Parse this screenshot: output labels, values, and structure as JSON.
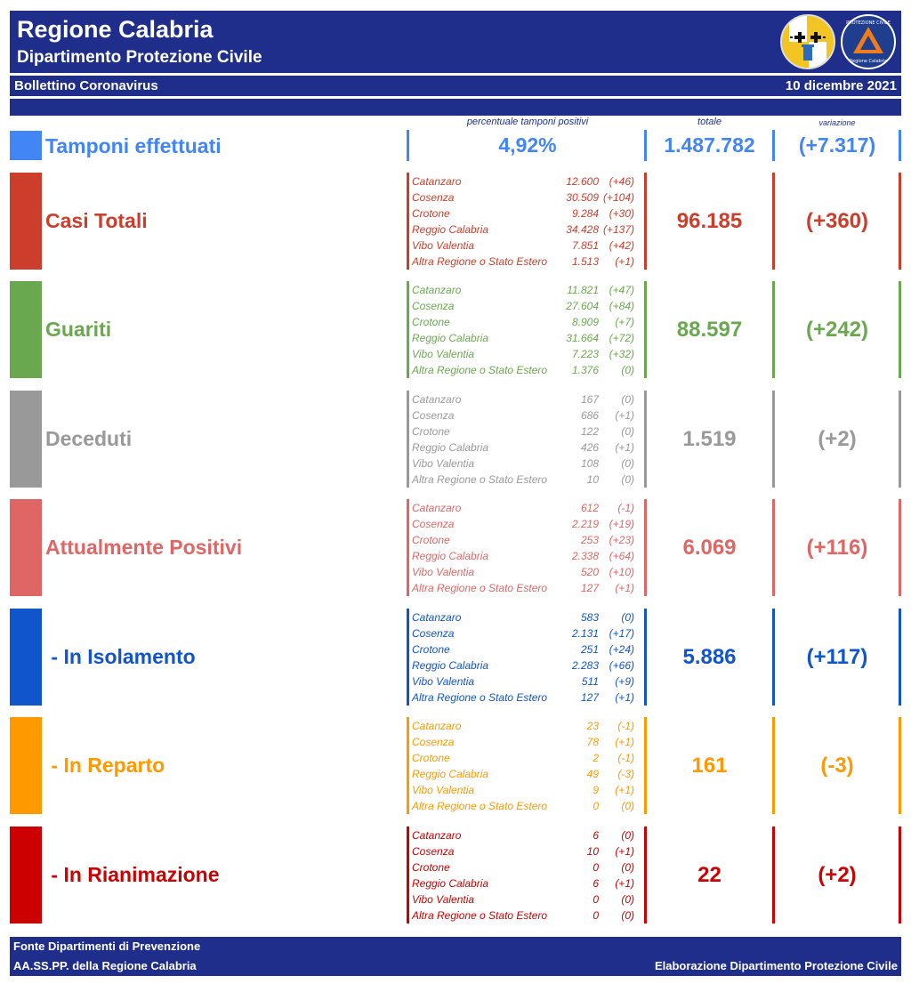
{
  "header": {
    "title": "Regione Calabria",
    "subtitle": "Dipartimento Protezione Civile",
    "bulletin": "Bollettino Coronavirus",
    "date": "10 dicembre 2021"
  },
  "columns": {
    "percent": "percentuale tamponi positivi",
    "total": "totale",
    "change": "variazione"
  },
  "tamponi": {
    "label": "Tamponi effettuati",
    "percent": "4,92%",
    "total": "1.487.782",
    "change": "(+7.317)",
    "color": "#4285f4"
  },
  "logos": {
    "left": {
      "name": "regione-calabria-coat-of-arms",
      "colors": {
        "bg": "#f2c524",
        "cross": "#111111",
        "column": "#2a6bbf"
      }
    },
    "right": {
      "name": "protezione-civile-calabria-logo",
      "text": "PROTEZIONE CIVILE",
      "bottom_text": "Regione Calabria",
      "colors": {
        "bg": "#1f3e8e",
        "triangle": "#f07c1c"
      }
    }
  },
  "sections": [
    {
      "key": "casi",
      "label": "Casi Totali",
      "color": "#cc3e2b",
      "total": "96.185",
      "change": "(+360)",
      "rows": [
        {
          "province": "Catanzaro",
          "value": "12.600",
          "change": "(+46)"
        },
        {
          "province": "Cosenza",
          "value": "30.509",
          "change": "(+104)"
        },
        {
          "province": "Crotone",
          "value": "9.284",
          "change": "(+30)"
        },
        {
          "province": "Reggio Calabria",
          "value": "34.428",
          "change": "(+137)"
        },
        {
          "province": "Vibo Valentia",
          "value": "7.851",
          "change": "(+42)"
        },
        {
          "province": "Altra Regione o Stato Estero",
          "value": "1.513",
          "change": "(+1)"
        }
      ]
    },
    {
      "key": "guariti",
      "label": "Guariti",
      "color": "#6aa84f",
      "total": "88.597",
      "change": "(+242)",
      "rows": [
        {
          "province": "Catanzaro",
          "value": "11.821",
          "change": "(+47)"
        },
        {
          "province": "Cosenza",
          "value": "27.604",
          "change": "(+84)"
        },
        {
          "province": "Crotone",
          "value": "8.909",
          "change": "(+7)"
        },
        {
          "province": "Reggio Calabria",
          "value": "31.664",
          "change": "(+72)"
        },
        {
          "province": "Vibo Valentia",
          "value": "7.223",
          "change": "(+32)"
        },
        {
          "province": "Altra Regione o Stato Estero",
          "value": "1.376",
          "change": "(0)"
        }
      ]
    },
    {
      "key": "deceduti",
      "label": "Deceduti",
      "color": "#999999",
      "total": "1.519",
      "change": "(+2)",
      "rows": [
        {
          "province": "Catanzaro",
          "value": "167",
          "change": "(0)"
        },
        {
          "province": "Cosenza",
          "value": "686",
          "change": "(+1)"
        },
        {
          "province": "Crotone",
          "value": "122",
          "change": "(0)"
        },
        {
          "province": "Reggio Calabria",
          "value": "426",
          "change": "(+1)"
        },
        {
          "province": "Vibo Valentia",
          "value": "108",
          "change": "(0)"
        },
        {
          "province": "Altra Regione o Stato Estero",
          "value": "10",
          "change": "(0)"
        }
      ]
    },
    {
      "key": "positivi",
      "label": "Attualmente Positivi",
      "color": "#e06666",
      "total": "6.069",
      "change": "(+116)",
      "rows": [
        {
          "province": "Catanzaro",
          "value": "612",
          "change": "(-1)"
        },
        {
          "province": "Cosenza",
          "value": "2.219",
          "change": "(+19)"
        },
        {
          "province": "Crotone",
          "value": "253",
          "change": "(+23)"
        },
        {
          "province": "Reggio Calabria",
          "value": "2.338",
          "change": "(+64)"
        },
        {
          "province": "Vibo Valentia",
          "value": "520",
          "change": "(+10)"
        },
        {
          "province": "Altra Regione o Stato Estero",
          "value": "127",
          "change": "(+1)"
        }
      ]
    },
    {
      "key": "isolamento",
      "label": " - In Isolamento",
      "color": "#1155cc",
      "total": "5.886",
      "change": "(+117)",
      "rows": [
        {
          "province": "Catanzaro",
          "value": "583",
          "change": "(0)"
        },
        {
          "province": "Cosenza",
          "value": "2.131",
          "change": "(+17)"
        },
        {
          "province": "Crotone",
          "value": "251",
          "change": "(+24)"
        },
        {
          "province": "Reggio Calabria",
          "value": "2.283",
          "change": "(+66)"
        },
        {
          "province": "Vibo Valentia",
          "value": "511",
          "change": "(+9)"
        },
        {
          "province": "Altra Regione o Stato Estero",
          "value": "127",
          "change": "(+1)"
        }
      ]
    },
    {
      "key": "reparto",
      "label": " - In Reparto",
      "color": "#ff9900",
      "total": "161",
      "change": "(-3)",
      "rows": [
        {
          "province": "Catanzaro",
          "value": "23",
          "change": "(-1)"
        },
        {
          "province": "Cosenza",
          "value": "78",
          "change": "(+1)"
        },
        {
          "province": "Crotone",
          "value": "2",
          "change": "(-1)"
        },
        {
          "province": "Reggio Calabria",
          "value": "49",
          "change": "(-3)"
        },
        {
          "province": "Vibo Valentia",
          "value": "9",
          "change": "(+1)"
        },
        {
          "province": "Altra Regione o Stato Estero",
          "value": "0",
          "change": "(0)"
        }
      ]
    },
    {
      "key": "rianimazione",
      "label": " - In Rianimazione",
      "color": "#cc0000",
      "total": "22",
      "change": "(+2)",
      "rows": [
        {
          "province": "Catanzaro",
          "value": "6",
          "change": "(0)"
        },
        {
          "province": "Cosenza",
          "value": "10",
          "change": "(+1)"
        },
        {
          "province": "Crotone",
          "value": "0",
          "change": "(0)"
        },
        {
          "province": "Reggio Calabria",
          "value": "6",
          "change": "(+1)"
        },
        {
          "province": "Vibo Valentia",
          "value": "0",
          "change": "(0)"
        },
        {
          "province": "Altra Regione o Stato Estero",
          "value": "0",
          "change": "(0)"
        }
      ]
    }
  ],
  "footer": {
    "source_line1": "Fonte Dipartimenti di Prevenzione",
    "source_line2": "AA.SS.PP.  della Regione Calabria",
    "credit": "Elaborazione Dipartimento Protezione Civile"
  }
}
